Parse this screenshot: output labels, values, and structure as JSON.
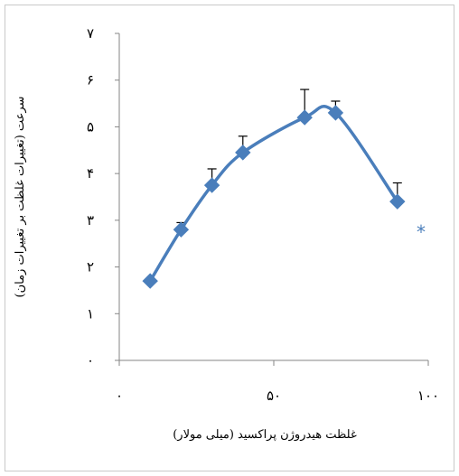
{
  "chart_data": {
    "type": "line",
    "xlabel": "غلظت هیدروژن پراکسید (میلی مولار)",
    "ylabel": "سرعت (تغییرات غلظت بر تغییرات زمان)",
    "xlim": [
      0,
      100
    ],
    "ylim": [
      0,
      7
    ],
    "x_ticks": [
      0,
      50,
      100
    ],
    "x_tick_labels": [
      "۰",
      "۵۰",
      "۱۰۰"
    ],
    "y_ticks": [
      0,
      1,
      2,
      3,
      4,
      5,
      6,
      7
    ],
    "y_tick_labels": [
      "۰",
      "۱",
      "۲",
      "۳",
      "۴",
      "۵",
      "۶",
      "۷"
    ],
    "grid": false,
    "smooth": true,
    "series": [
      {
        "color": "#4a7ebb",
        "marker": "diamond",
        "x": [
          10,
          20,
          30,
          40,
          60,
          70,
          90
        ],
        "y": [
          1.7,
          2.8,
          3.75,
          4.45,
          5.2,
          5.3,
          3.4
        ],
        "error_up": [
          0,
          0.15,
          0.35,
          0.35,
          0.6,
          0.25,
          0.4
        ]
      }
    ],
    "annotations": [
      {
        "text": "*",
        "color": "#4a7ebb"
      }
    ]
  }
}
